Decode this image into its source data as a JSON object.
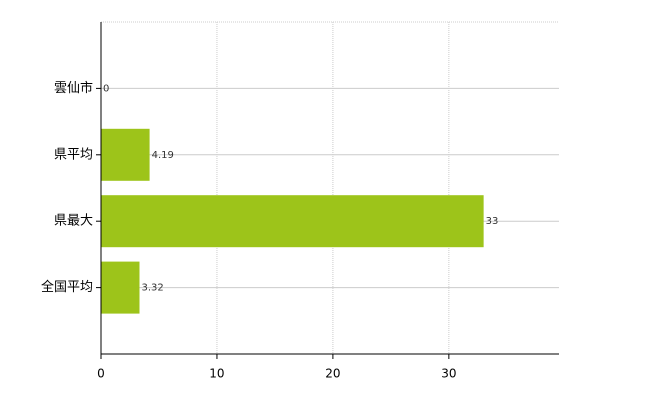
{
  "chart_data": {
    "type": "hbar",
    "categories": [
      "雲仙市",
      "県平均",
      "県最大",
      "全国平均"
    ],
    "values": [
      0,
      4.19,
      33,
      3.32
    ],
    "color": "#9dc41a",
    "xlim": [
      0,
      39.5
    ],
    "xticks": [
      0,
      10,
      20,
      30
    ],
    "grid": true
  }
}
